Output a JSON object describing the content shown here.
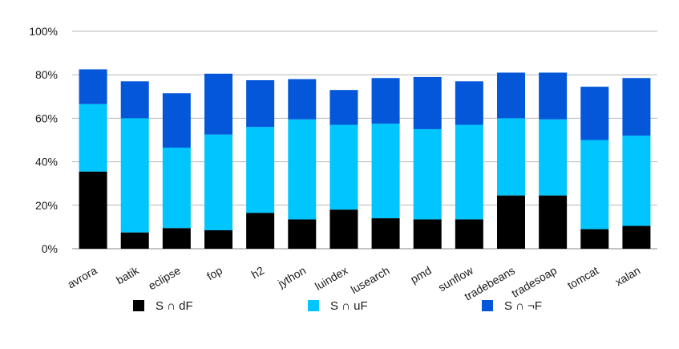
{
  "chart_data": {
    "type": "bar",
    "stacked": true,
    "categories": [
      "avrora",
      "batik",
      "eclipse",
      "fop",
      "h2",
      "jython",
      "luindex",
      "lusearch",
      "pmd",
      "sunflow",
      "tradebeans",
      "tradesoap",
      "tomcat",
      "xalan"
    ],
    "series": [
      {
        "name": "S ∩ dF",
        "color": "#000000",
        "values": [
          35.5,
          7.5,
          9.5,
          8.5,
          16.5,
          13.5,
          18.0,
          14.0,
          13.5,
          13.5,
          24.5,
          24.5,
          9.0,
          10.5
        ]
      },
      {
        "name": "S ∩ uF",
        "color": "#00c5ff",
        "values": [
          31.0,
          52.5,
          37.0,
          44.0,
          39.5,
          46.0,
          39.0,
          43.5,
          41.5,
          43.5,
          35.5,
          35.0,
          41.0,
          41.5
        ]
      },
      {
        "name": "S ∩ ¬F",
        "color": "#0457d9",
        "values": [
          16.0,
          17.0,
          25.0,
          28.0,
          21.5,
          18.5,
          16.0,
          21.0,
          24.0,
          20.0,
          21.0,
          21.5,
          24.5,
          26.5
        ]
      }
    ],
    "yticks": [
      "0%",
      "20%",
      "40%",
      "60%",
      "80%",
      "100%"
    ],
    "ylim": [
      0,
      100
    ],
    "grid": true,
    "legend": "bottom"
  }
}
